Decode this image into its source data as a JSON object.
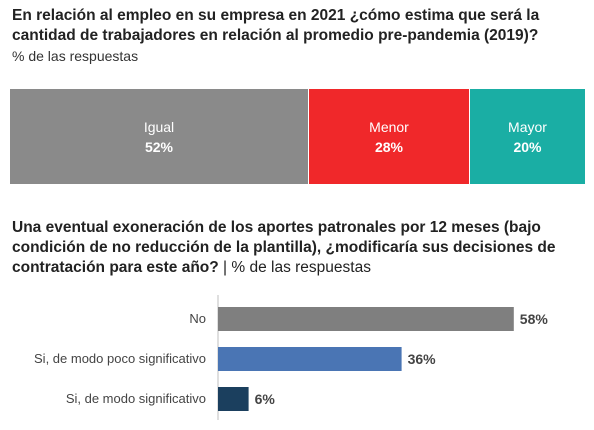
{
  "chart_data": [
    {
      "type": "bar",
      "orientation": "horizontal-stacked",
      "title": "En relación al empleo en su empresa en 2021 ¿cómo estima que será la cantidad de trabajadores en relación al promedio pre-pandemia (2019)?",
      "subtitle": "% de las respuestas",
      "categories": [
        "Igual",
        "Menor",
        "Mayor"
      ],
      "values": [
        52,
        28,
        20
      ],
      "value_labels": [
        "52%",
        "28%",
        "20%"
      ],
      "colors": [
        "#8a8a8a",
        "#f0282a",
        "#1aaea4"
      ]
    },
    {
      "type": "bar",
      "orientation": "horizontal",
      "title": "Una eventual exoneración de los aportes patronales por 12 meses (bajo condición de no reducción de la plantilla), ¿modificaría sus decisiones de contratación para este año?",
      "title_suffix": " | % de las respuestas",
      "categories": [
        "No",
        "Si, de modo poco significativo",
        "Si, de modo significativo"
      ],
      "values": [
        58,
        36,
        6
      ],
      "value_labels": [
        "58%",
        "36%",
        "6%"
      ],
      "colors": [
        "#7f7f7f",
        "#4a75b4",
        "#1b3f5e"
      ]
    }
  ]
}
